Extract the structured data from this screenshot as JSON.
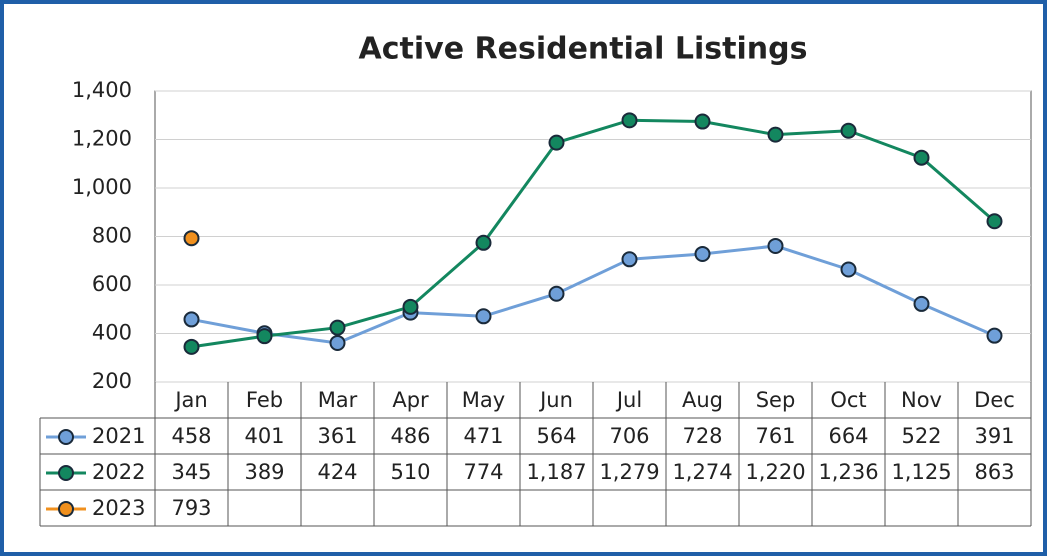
{
  "chart_data": {
    "type": "line",
    "title": "Active Residential Listings",
    "categories": [
      "Jan",
      "Feb",
      "Mar",
      "Apr",
      "May",
      "Jun",
      "Jul",
      "Aug",
      "Sep",
      "Oct",
      "Nov",
      "Dec"
    ],
    "series": [
      {
        "name": "2021",
        "color": "#6f9fd8",
        "values": [
          458,
          401,
          361,
          486,
          471,
          564,
          706,
          728,
          761,
          664,
          522,
          391
        ]
      },
      {
        "name": "2022",
        "color": "#13875f",
        "values": [
          345,
          389,
          424,
          510,
          774,
          1187,
          1279,
          1274,
          1220,
          1236,
          1125,
          863
        ],
        "value_labels": [
          "345",
          "389",
          "424",
          "510",
          "774",
          "1,187",
          "1,279",
          "1,274",
          "1,220",
          "1,236",
          "1,125",
          "863"
        ]
      },
      {
        "name": "2023",
        "color": "#f0901e",
        "values": [
          793,
          null,
          null,
          null,
          null,
          null,
          null,
          null,
          null,
          null,
          null,
          null
        ]
      }
    ],
    "ylim": [
      200,
      1400
    ],
    "yticks": [
      200,
      400,
      600,
      800,
      {
        "value": 1000,
        "label": "1,000"
      },
      {
        "value": 1200,
        "label": "1,200"
      },
      {
        "value": 1400,
        "label": "1,400"
      }
    ],
    "grid": true
  }
}
